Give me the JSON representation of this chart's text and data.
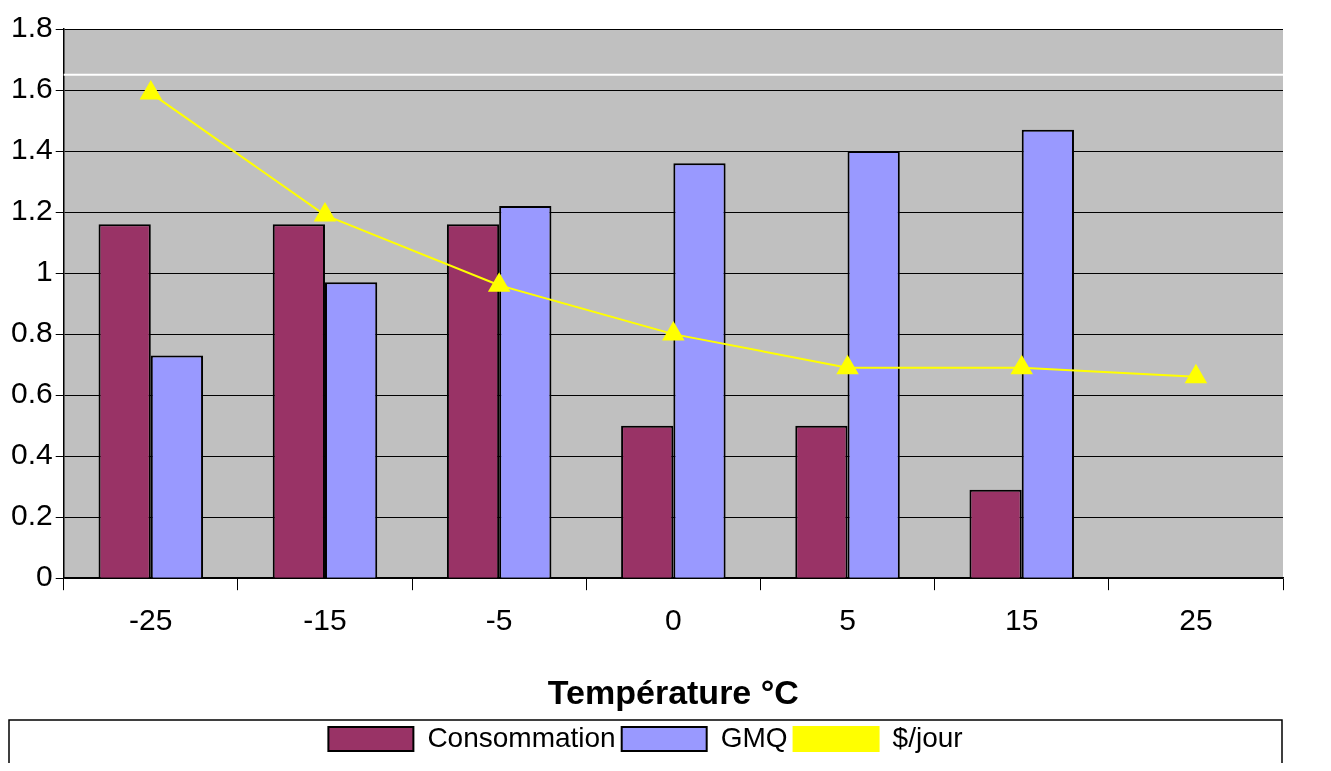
{
  "chart_data": {
    "type": "bar",
    "xlabel": "Température °C",
    "categories": [
      "-25",
      "-15",
      "-5",
      "0",
      "5",
      "15",
      "25"
    ],
    "series": [
      {
        "name": "Consommation",
        "color": "#993366",
        "values": [
          1.16,
          1.16,
          1.16,
          0.5,
          0.5,
          0.29,
          null
        ]
      },
      {
        "name": "GMQ",
        "color": "#9999ff",
        "values": [
          0.73,
          0.97,
          1.22,
          1.36,
          1.4,
          1.47,
          null
        ]
      },
      {
        "name": "$/jour",
        "type": "line",
        "color": "#ffff00",
        "marker": "triangle",
        "values": [
          1.59,
          1.19,
          0.96,
          0.8,
          0.69,
          0.69,
          0.66
        ]
      }
    ],
    "ylim": [
      0,
      1.8
    ],
    "yticks": [
      0,
      0.2,
      0.4,
      0.6,
      0.8,
      1,
      1.2,
      1.4,
      1.6,
      1.8
    ],
    "ref_lines": [
      {
        "axis": "y",
        "value": 1.65,
        "color": "#ffffff"
      }
    ],
    "grid": "y",
    "legend": "bottom"
  }
}
